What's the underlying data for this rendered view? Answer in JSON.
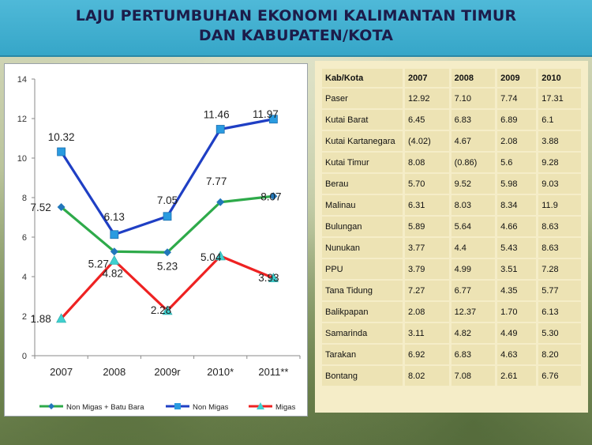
{
  "title": {
    "line1": "LAJU PERTUMBUHAN EKONOMI KALIMANTAN TIMUR",
    "line2": "DAN KABUPATEN/KOTA"
  },
  "chart_data": {
    "type": "line",
    "categories": [
      "2007",
      "2008",
      "2009r",
      "2010*",
      "2011**"
    ],
    "ylim": [
      0,
      14
    ],
    "yticks": [
      "0",
      "2",
      "4",
      "6",
      "8",
      "10",
      "12",
      "14"
    ],
    "grid": false,
    "legend_position": "bottom",
    "series": [
      {
        "name": "Non Migas + Batu Bara",
        "values": [
          7.52,
          5.27,
          5.23,
          7.77,
          8.07
        ],
        "labels": [
          "7.52",
          "5.27",
          "5.23",
          "7.77",
          "8.07"
        ],
        "color": "#2eaa4a",
        "marker": "diamond"
      },
      {
        "name": "Non Migas",
        "values": [
          10.32,
          6.13,
          7.05,
          11.46,
          11.97
        ],
        "labels": [
          "10.32",
          "6.13",
          "7.05",
          "11.46",
          "11.97"
        ],
        "color": "#1f3fc4",
        "marker": "square"
      },
      {
        "name": "Migas",
        "values": [
          1.88,
          4.82,
          2.28,
          5.04,
          3.93
        ],
        "labels": [
          "1.88",
          "4.82",
          "2.28",
          "5.04",
          "3.93"
        ],
        "color": "#ee2222",
        "marker": "triangle"
      }
    ]
  },
  "table": {
    "headers": [
      "Kab/Kota",
      "2007",
      "2008",
      "2009",
      "2010"
    ],
    "rows": [
      [
        "Paser",
        "12.92",
        "7.10",
        "7.74",
        "17.31"
      ],
      [
        "Kutai Barat",
        "6.45",
        "6.83",
        "6.89",
        "6.1"
      ],
      [
        "Kutai Kartanegara",
        "(4.02)",
        "4.67",
        "2.08",
        "3.88"
      ],
      [
        "Kutai Timur",
        "8.08",
        "(0.86)",
        "5.6",
        "9.28"
      ],
      [
        "Berau",
        "5.70",
        "9.52",
        "5.98",
        "9.03"
      ],
      [
        "Malinau",
        "6.31",
        "8.03",
        "8.34",
        "11.9"
      ],
      [
        "Bulungan",
        "5.89",
        "5.64",
        "4.66",
        "8.63"
      ],
      [
        "Nunukan",
        "3.77",
        "4.4",
        "5.43",
        "8.63"
      ],
      [
        "PPU",
        "3.79",
        "4.99",
        "3.51",
        "7.28"
      ],
      [
        "Tana Tidung",
        "7.27",
        "6.77",
        "4.35",
        "5.77"
      ],
      [
        "Balikpapan",
        "2.08",
        "12.37",
        "1.70",
        "6.13"
      ],
      [
        "Samarinda",
        "3.11",
        "4.82",
        "4.49",
        "5.30"
      ],
      [
        "Tarakan",
        "6.92",
        "6.83",
        "4.63",
        "8.20"
      ],
      [
        "Bontang",
        "8.02",
        "7.08",
        "2.61",
        "6.76"
      ]
    ]
  },
  "colors": {
    "title_bg": "#3eb0d0",
    "title_text": "#1c1c4a",
    "table_bg": "#ede3b4"
  }
}
